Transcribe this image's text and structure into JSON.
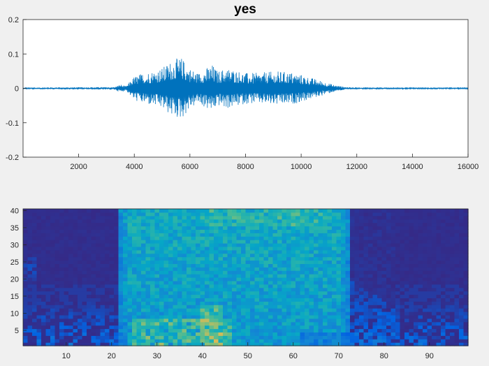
{
  "figure": {
    "background": "#f0f0f0"
  },
  "chart_data": [
    {
      "type": "line",
      "title": "yes",
      "xlabel": "",
      "ylabel": "",
      "xlim": [
        1,
        16000
      ],
      "ylim": [
        -0.2,
        0.2
      ],
      "xticks": [
        2000,
        4000,
        6000,
        8000,
        10000,
        12000,
        14000,
        16000
      ],
      "xtick_labels": [
        "2000",
        "4000",
        "6000",
        "8000",
        "10000",
        "12000",
        "14000",
        "16000"
      ],
      "yticks": [
        0.2,
        0.1,
        0,
        -0.1,
        -0.2
      ],
      "ytick_labels": [
        "0.2",
        "0.1",
        "0",
        "-0.1",
        "-0.2"
      ],
      "grid": false,
      "line_color": "#0072bd",
      "waveform_envelope": {
        "sample_index": [
          1,
          3300,
          3500,
          3700,
          4000,
          4300,
          4600,
          5000,
          5400,
          5700,
          6000,
          6300,
          6600,
          6800,
          7000,
          7300,
          7600,
          8000,
          8400,
          8800,
          9200,
          9600,
          10000,
          10400,
          10800,
          11200,
          11600,
          12000,
          16000
        ],
        "amplitude": [
          0.002,
          0.004,
          0.012,
          0.006,
          0.035,
          0.045,
          0.05,
          0.06,
          0.085,
          0.09,
          0.06,
          0.045,
          0.06,
          0.07,
          0.05,
          0.06,
          0.055,
          0.045,
          0.045,
          0.048,
          0.05,
          0.048,
          0.04,
          0.03,
          0.02,
          0.01,
          0.004,
          0.002,
          0.002
        ]
      }
    },
    {
      "type": "heatmap",
      "title": "",
      "xlabel": "",
      "ylabel": "",
      "xlim": [
        1,
        98
      ],
      "ylim": [
        1,
        40
      ],
      "xticks": [
        10,
        20,
        30,
        40,
        50,
        60,
        70,
        80,
        90
      ],
      "xtick_labels": [
        "10",
        "20",
        "30",
        "40",
        "50",
        "60",
        "70",
        "80",
        "90"
      ],
      "yticks": [
        5,
        10,
        15,
        20,
        25,
        30,
        35,
        40
      ],
      "ytick_labels": [
        "5",
        "10",
        "15",
        "20",
        "25",
        "30",
        "35",
        "40"
      ],
      "grid": false,
      "n_time_frames": 98,
      "n_mel_bands": 40,
      "colormap": [
        "#352a87",
        "#0363e1",
        "#1485d4",
        "#06a7c6",
        "#38b99e",
        "#92bf73",
        "#d9ba56"
      ],
      "speech_frames": [
        22,
        70
      ]
    }
  ]
}
